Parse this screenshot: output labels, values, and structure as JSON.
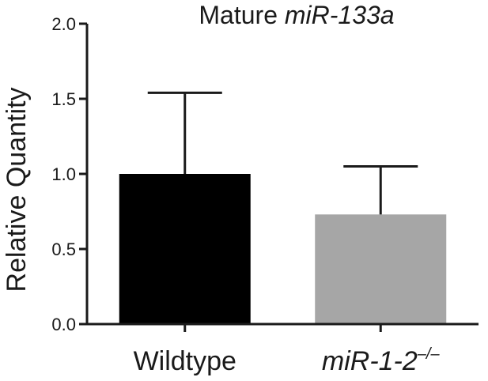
{
  "chart_data": {
    "type": "bar",
    "title": "Mature",
    "title_italic": "miR-133a",
    "ylabel": "Relative Quantity",
    "xlabel": "",
    "ylim": [
      0,
      2.0
    ],
    "yticks": [
      "0.0",
      "0.5",
      "1.0",
      "1.5",
      "2.0"
    ],
    "ytick_values": [
      0,
      0.5,
      1.0,
      1.5,
      2.0
    ],
    "categories": [
      "Wildtype",
      "miR-1-2"
    ],
    "category_superscripts": [
      "",
      "–/–"
    ],
    "category_italic": [
      false,
      true
    ],
    "values": [
      1.0,
      0.73
    ],
    "error_upper": [
      1.54,
      1.05
    ],
    "colors": [
      "#000000",
      "#a6a6a6"
    ],
    "grid": false,
    "legend": "none"
  }
}
